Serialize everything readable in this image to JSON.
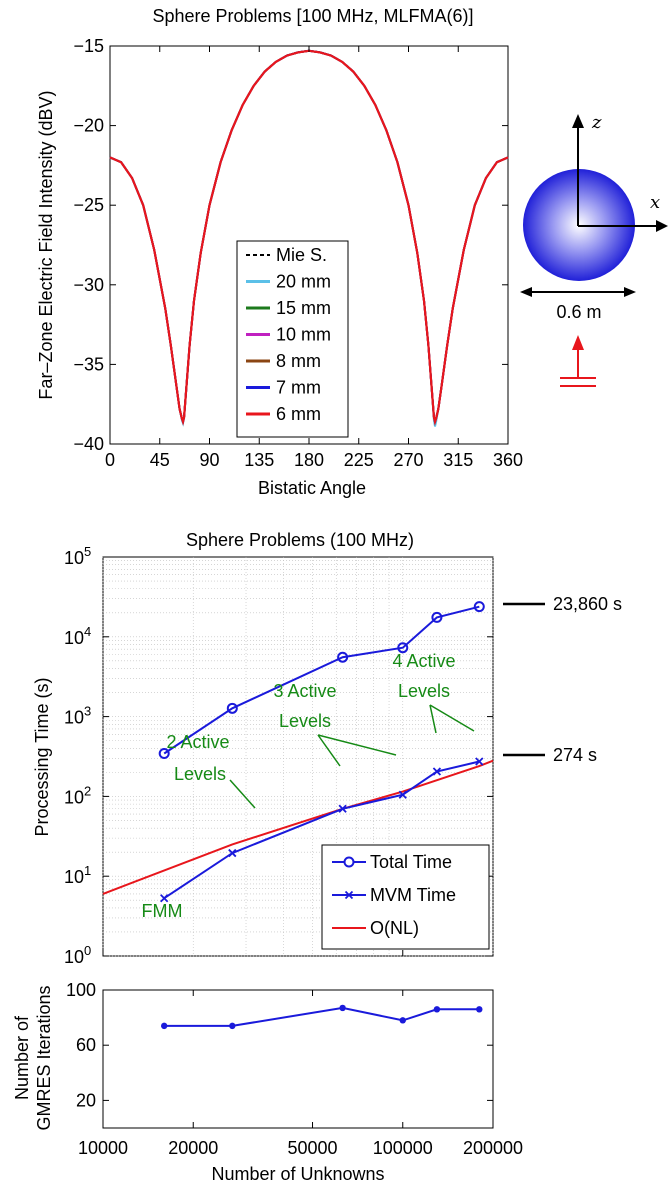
{
  "chart_data": [
    {
      "type": "line",
      "title": "Sphere Problems [100 MHz, MLFMA(6)]",
      "xlabel": "Bistatic Angle",
      "ylabel": "Far–Zone Electric Field Intensity (dBV)",
      "xlim": [
        0,
        360
      ],
      "ylim": [
        -40,
        -15
      ],
      "xticks": [
        "0",
        "45",
        "90",
        "135",
        "180",
        "225",
        "270",
        "315",
        "360"
      ],
      "yticks": [
        "−15",
        "−20",
        "−25",
        "−30",
        "−35",
        "−40"
      ],
      "legend": [
        "Mie S.",
        "20 mm",
        "15 mm",
        "10 mm",
        "8 mm",
        "7 mm",
        "6 mm"
      ],
      "legend_position": "center-bottom",
      "grid": false,
      "x": [
        0,
        10,
        20,
        30,
        40,
        50,
        55,
        60,
        63,
        65,
        66,
        67,
        69,
        72,
        76,
        82,
        90,
        100,
        110,
        120,
        130,
        140,
        150,
        160,
        170,
        180,
        190,
        200,
        210,
        220,
        230,
        240,
        250,
        260,
        270,
        278,
        284,
        288,
        291,
        293,
        294,
        295,
        297,
        300,
        305,
        310,
        320,
        330,
        340,
        350,
        360
      ],
      "series": [
        {
          "name": "Mie S.",
          "color": "#000000",
          "values": [
            -22.0,
            -22.3,
            -23.3,
            -25.0,
            -27.8,
            -31.5,
            -33.8,
            -36.3,
            -37.8,
            -38.4,
            -38.6,
            -38.3,
            -36.5,
            -33.8,
            -31.0,
            -28.0,
            -25.0,
            -22.3,
            -20.3,
            -18.7,
            -17.5,
            -16.6,
            -16.0,
            -15.6,
            -15.4,
            -15.3,
            -15.4,
            -15.6,
            -16.0,
            -16.6,
            -17.5,
            -18.7,
            -20.3,
            -22.3,
            -25.0,
            -28.0,
            -31.0,
            -33.8,
            -36.5,
            -38.3,
            -38.6,
            -38.4,
            -37.8,
            -36.3,
            -33.8,
            -31.5,
            -27.8,
            -25.0,
            -23.3,
            -22.3,
            -22.0
          ]
        },
        {
          "name": "20 mm",
          "color": "#5bc0e8",
          "values": [
            -22.0,
            -22.3,
            -23.3,
            -25.0,
            -27.8,
            -31.5,
            -33.8,
            -36.3,
            -37.8,
            -38.5,
            -38.7,
            -38.4,
            -36.5,
            -33.8,
            -31.0,
            -28.0,
            -25.0,
            -22.3,
            -20.3,
            -18.7,
            -17.5,
            -16.6,
            -16.0,
            -15.6,
            -15.4,
            -15.3,
            -15.4,
            -15.6,
            -16.0,
            -16.6,
            -17.5,
            -18.7,
            -20.3,
            -22.3,
            -25.0,
            -28.0,
            -31.0,
            -33.8,
            -36.5,
            -38.5,
            -38.9,
            -38.6,
            -37.8,
            -36.3,
            -33.8,
            -31.5,
            -27.8,
            -25.0,
            -23.3,
            -22.3,
            -22.0
          ]
        },
        {
          "name": "15 mm",
          "color": "#1c7a1c",
          "values": [
            -22.0,
            -22.3,
            -23.3,
            -25.0,
            -27.8,
            -31.5,
            -33.8,
            -36.3,
            -37.8,
            -38.4,
            -38.6,
            -38.3,
            -36.5,
            -33.8,
            -31.0,
            -28.0,
            -25.0,
            -22.3,
            -20.3,
            -18.7,
            -17.5,
            -16.6,
            -16.0,
            -15.6,
            -15.4,
            -15.3,
            -15.4,
            -15.6,
            -16.0,
            -16.6,
            -17.5,
            -18.7,
            -20.3,
            -22.3,
            -25.0,
            -28.0,
            -31.0,
            -33.8,
            -36.5,
            -38.3,
            -38.6,
            -38.4,
            -37.8,
            -36.3,
            -33.8,
            -31.5,
            -27.8,
            -25.0,
            -23.3,
            -22.3,
            -22.0
          ]
        },
        {
          "name": "10 mm",
          "color": "#c020c0",
          "values": [
            -22.0,
            -22.3,
            -23.3,
            -25.0,
            -27.8,
            -31.5,
            -33.8,
            -36.3,
            -37.8,
            -38.4,
            -38.6,
            -38.3,
            -36.5,
            -33.8,
            -31.0,
            -28.0,
            -25.0,
            -22.3,
            -20.3,
            -18.7,
            -17.5,
            -16.6,
            -16.0,
            -15.6,
            -15.4,
            -15.3,
            -15.4,
            -15.6,
            -16.0,
            -16.6,
            -17.5,
            -18.7,
            -20.3,
            -22.3,
            -25.0,
            -28.0,
            -31.0,
            -33.8,
            -36.5,
            -38.3,
            -38.6,
            -38.4,
            -37.8,
            -36.3,
            -33.8,
            -31.5,
            -27.8,
            -25.0,
            -23.3,
            -22.3,
            -22.0
          ]
        },
        {
          "name": "8 mm",
          "color": "#8b4513",
          "values": [
            -22.0,
            -22.3,
            -23.3,
            -25.0,
            -27.8,
            -31.5,
            -33.8,
            -36.3,
            -37.8,
            -38.4,
            -38.6,
            -38.3,
            -36.5,
            -33.8,
            -31.0,
            -28.0,
            -25.0,
            -22.3,
            -20.3,
            -18.7,
            -17.5,
            -16.6,
            -16.0,
            -15.6,
            -15.4,
            -15.3,
            -15.4,
            -15.6,
            -16.0,
            -16.6,
            -17.5,
            -18.7,
            -20.3,
            -22.3,
            -25.0,
            -28.0,
            -31.0,
            -33.8,
            -36.5,
            -38.3,
            -38.6,
            -38.4,
            -37.8,
            -36.3,
            -33.8,
            -31.5,
            -27.8,
            -25.0,
            -23.3,
            -22.3,
            -22.0
          ]
        },
        {
          "name": "7 mm",
          "color": "#1a1adb",
          "values": [
            -22.0,
            -22.3,
            -23.3,
            -25.0,
            -27.8,
            -31.5,
            -33.8,
            -36.3,
            -37.8,
            -38.4,
            -38.6,
            -38.3,
            -36.5,
            -33.8,
            -31.0,
            -28.0,
            -25.0,
            -22.3,
            -20.3,
            -18.7,
            -17.5,
            -16.6,
            -16.0,
            -15.6,
            -15.4,
            -15.3,
            -15.4,
            -15.6,
            -16.0,
            -16.6,
            -17.5,
            -18.7,
            -20.3,
            -22.3,
            -25.0,
            -28.0,
            -31.0,
            -33.8,
            -36.5,
            -38.3,
            -38.6,
            -38.4,
            -37.8,
            -36.3,
            -33.8,
            -31.5,
            -27.8,
            -25.0,
            -23.3,
            -22.3,
            -22.0
          ]
        },
        {
          "name": "6 mm",
          "color": "#e8161c",
          "values": [
            -22.0,
            -22.3,
            -23.3,
            -25.0,
            -27.8,
            -31.5,
            -33.8,
            -36.3,
            -37.8,
            -38.4,
            -38.6,
            -38.3,
            -36.5,
            -33.8,
            -31.0,
            -28.0,
            -25.0,
            -22.3,
            -20.3,
            -18.7,
            -17.5,
            -16.6,
            -16.0,
            -15.6,
            -15.4,
            -15.3,
            -15.4,
            -15.6,
            -16.0,
            -16.6,
            -17.5,
            -18.7,
            -20.3,
            -22.3,
            -25.0,
            -28.0,
            -31.0,
            -33.8,
            -36.5,
            -38.3,
            -38.6,
            -38.4,
            -37.8,
            -36.3,
            -33.8,
            -31.5,
            -27.8,
            -25.0,
            -23.3,
            -22.3,
            -22.0
          ]
        }
      ]
    },
    {
      "type": "line",
      "title": "Sphere Problems (100 MHz)",
      "xlabel": "",
      "ylabel": "Processing Time (s)",
      "xscale": "log",
      "yscale": "log",
      "xlim": [
        10000,
        200000
      ],
      "ylim": [
        1,
        100000
      ],
      "grid": true,
      "legend": [
        "Total Time",
        "MVM Time",
        "O(NL)"
      ],
      "legend_position": "bottom-right",
      "yticks": [
        "10^0",
        "10^1",
        "10^2",
        "10^3",
        "10^4",
        "10^5"
      ],
      "series": [
        {
          "name": "Total Time",
          "color": "#1a1adb",
          "marker": "circle",
          "x": [
            16000,
            27000,
            63000,
            100000,
            130000,
            180000
          ],
          "values": [
            345,
            1270,
            5550,
            7300,
            17500,
            23860
          ]
        },
        {
          "name": "MVM Time",
          "color": "#1a1adb",
          "marker": "x",
          "x": [
            16000,
            27000,
            63000,
            100000,
            130000,
            180000
          ],
          "values": [
            5.3,
            19.5,
            70,
            105,
            205,
            274
          ]
        },
        {
          "name": "O(NL)",
          "color": "#e8161c",
          "x": [
            10000,
            27000,
            63000,
            100000,
            180000,
            200000
          ],
          "values": [
            6,
            25,
            70,
            115,
            240,
            280
          ]
        }
      ],
      "annotations": {
        "fmm": "FMM",
        "level2": [
          "2 Active",
          "Levels"
        ],
        "level3": [
          "3 Active",
          "Levels"
        ],
        "level4": [
          "4 Active",
          "Levels"
        ],
        "max_time": "23,860 s",
        "min_time": "274 s"
      }
    },
    {
      "type": "line",
      "title": "",
      "xlabel": "Number of Unknowns",
      "ylabel": [
        "Number of",
        "GMRES Iterations"
      ],
      "xscale": "log",
      "xlim": [
        10000,
        200000
      ],
      "ylim": [
        0,
        100
      ],
      "xticks": [
        "10000",
        "20000",
        "50000",
        "100000",
        "200000"
      ],
      "yticks": [
        "100",
        "60",
        "20"
      ],
      "series": [
        {
          "name": "",
          "color": "#1a1adb",
          "marker": "dot",
          "x": [
            16000,
            27000,
            63000,
            100000,
            130000,
            180000
          ],
          "values": [
            74,
            74,
            87,
            78,
            86,
            86
          ]
        }
      ]
    }
  ],
  "diagram": {
    "axis_z": "z",
    "axis_x": "x",
    "dimension": "0.6 m"
  }
}
